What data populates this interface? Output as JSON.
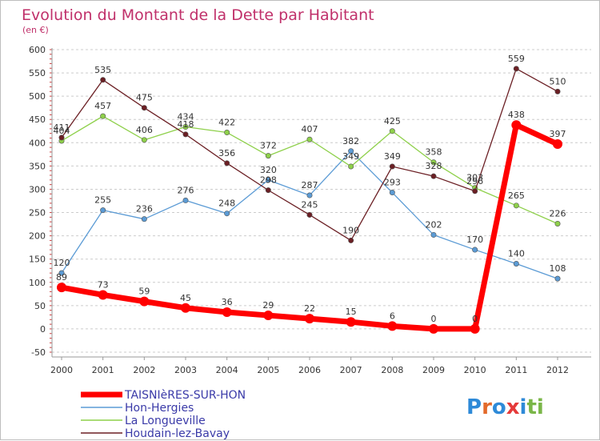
{
  "chart_data": {
    "type": "line",
    "title": "Evolution du Montant de la Dette par Habitant",
    "subtitle": "(en €)",
    "x": [
      "2000",
      "2001",
      "2002",
      "2003",
      "2004",
      "2005",
      "2006",
      "2007",
      "2008",
      "2009",
      "2010",
      "2011",
      "2012"
    ],
    "ylim": [
      -50,
      600
    ],
    "yticks": [
      -50,
      0,
      50,
      100,
      150,
      200,
      250,
      300,
      350,
      400,
      450,
      500,
      550,
      600
    ],
    "grid": "horizontal-dashed",
    "legend_position": "bottom-left",
    "series": [
      {
        "name": "TAISNIèRES-SUR-HON",
        "color": "#ff0000",
        "values": [
          89,
          73,
          59,
          45,
          36,
          29,
          22,
          15,
          6,
          0,
          0,
          438,
          397
        ]
      },
      {
        "name": "Hon-Hergies",
        "color": "#5b9bd5",
        "values": [
          120,
          255,
          236,
          276,
          248,
          320,
          287,
          382,
          293,
          202,
          170,
          140,
          108
        ]
      },
      {
        "name": "La Longueville",
        "color": "#8ed04a",
        "values": [
          404,
          457,
          406,
          434,
          422,
          372,
          407,
          349,
          425,
          358,
          303,
          265,
          226
        ]
      },
      {
        "name": "Houdain-lez-Bavay",
        "color": "#6b1f24",
        "values": [
          411,
          535,
          475,
          418,
          356,
          298,
          245,
          190,
          349,
          328,
          296,
          559,
          510
        ]
      }
    ]
  },
  "logo": {
    "text": "Proxiti",
    "colors": [
      "#2e8ad8",
      "#f08a1c",
      "#7ab648",
      "#e53a3a"
    ]
  }
}
